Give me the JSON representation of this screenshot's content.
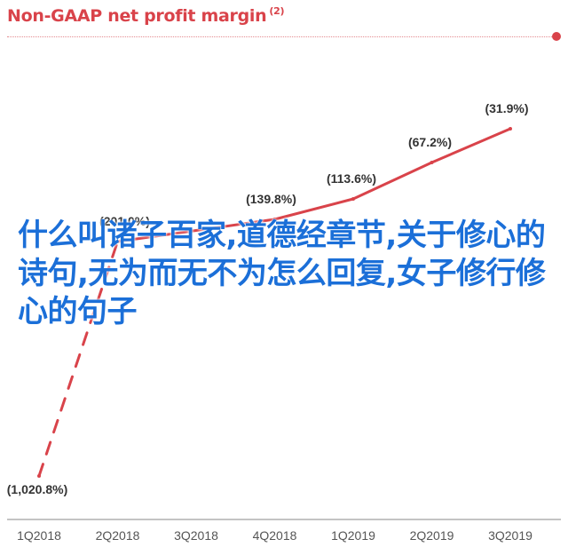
{
  "title": "Non-GAAP net profit margin",
  "title_note": "(2)",
  "chart_data": {
    "type": "line",
    "title": "Non-GAAP net profit margin",
    "categories": [
      "1Q2018",
      "2Q2018",
      "3Q2018",
      "4Q2018",
      "1Q2019",
      "2Q2019",
      "3Q2019"
    ],
    "values": [
      -1020.8,
      -201.0,
      null,
      -139.8,
      -113.6,
      -67.2,
      -31.9
    ],
    "data_labels": [
      "(1,020.8%)",
      "(201.0%)",
      "",
      "(139.8%)",
      "(113.6%)",
      "(67.2%)",
      "(31.9%)"
    ],
    "ylabel": "",
    "xlabel": "",
    "line_style_first_segment": "dashed",
    "grid": false,
    "legend": "none",
    "color": "#d9434a"
  },
  "overlay_text": "什么叫诸子百家,道德经章节,关于修心的诗句,无为而无不为怎么回复,女子修行修心的句子",
  "colors": {
    "accent": "#d9434a",
    "overlay": "#1b6fd8",
    "axis": "#555555",
    "label": "#333333"
  }
}
